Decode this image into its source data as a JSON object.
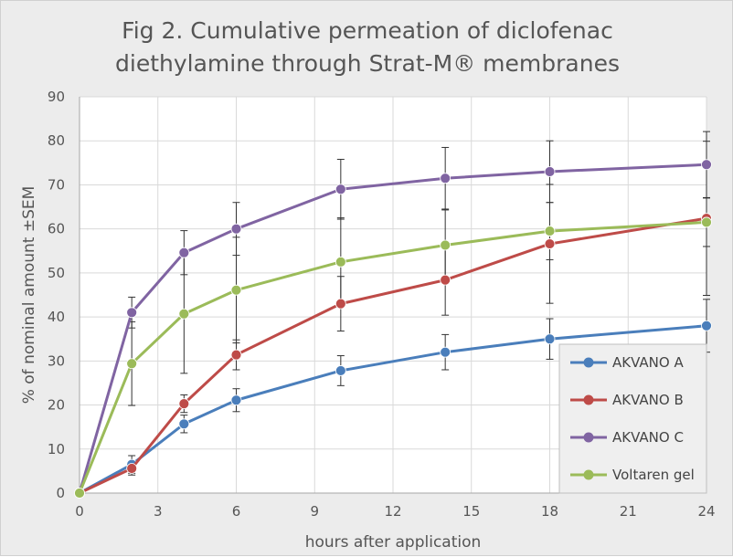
{
  "chart_data": {
    "type": "line",
    "title_lines": [
      "Fig 2. Cumulative permeation of diclofenac",
      "diethylamine through  Strat-M® membranes"
    ],
    "xlabel": "hours after application",
    "ylabel": "% of nominal amount ±SEM",
    "xlim": [
      0,
      24
    ],
    "ylim": [
      0,
      90
    ],
    "xticks": [
      0,
      3,
      6,
      9,
      12,
      15,
      18,
      21,
      24
    ],
    "yticks": [
      0,
      10,
      20,
      30,
      40,
      50,
      60,
      70,
      80,
      90
    ],
    "x_grid": true,
    "y_grid": true,
    "legend_position": "bottom-right",
    "x": [
      0,
      2,
      4,
      6,
      10,
      14,
      18,
      24
    ],
    "series": [
      {
        "name": "AKVANO A",
        "color": "#4a7ebb",
        "values": [
          0,
          6.5,
          15.7,
          21.1,
          27.8,
          32.0,
          35.0,
          38.0
        ],
        "err": [
          0,
          2.0,
          2.0,
          2.6,
          3.4,
          4.0,
          4.6,
          6.0
        ]
      },
      {
        "name": "AKVANO B",
        "color": "#be4b48",
        "values": [
          0,
          5.6,
          20.3,
          31.4,
          43.0,
          48.4,
          56.6,
          62.4
        ],
        "err": [
          0,
          1.5,
          2.0,
          3.4,
          6.2,
          8.0,
          13.5,
          17.5
        ]
      },
      {
        "name": "AKVANO C",
        "color": "#8064a2",
        "values": [
          0,
          41.0,
          54.6,
          60.0,
          69.0,
          71.5,
          73.0,
          74.6
        ],
        "err": [
          0,
          3.5,
          5.0,
          6.0,
          6.8,
          7.0,
          7.0,
          7.5
        ]
      },
      {
        "name": "Voltaren gel",
        "color": "#9bbb59",
        "values": [
          0,
          29.4,
          40.7,
          46.1,
          52.5,
          56.3,
          59.5,
          61.5
        ],
        "err": [
          0,
          9.5,
          13.5,
          12.0,
          10.0,
          8.0,
          6.5,
          5.5
        ]
      }
    ]
  }
}
